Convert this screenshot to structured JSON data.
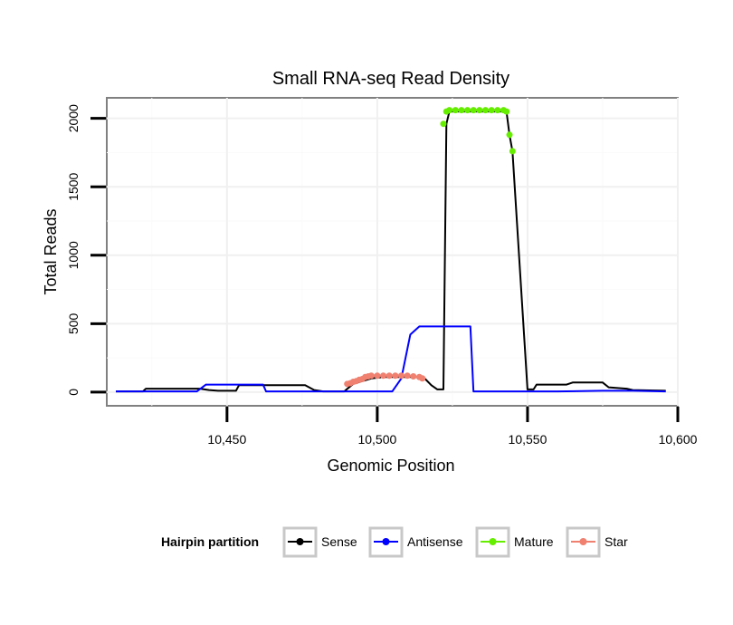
{
  "chart_data": {
    "type": "line",
    "title": "Small RNA-seq Read Density",
    "xlabel": "Genomic Position",
    "ylabel": "Total Reads",
    "xlim": [
      10410,
      10600
    ],
    "ylim": [
      -100,
      2150
    ],
    "x_ticks": [
      10450,
      10500,
      10550,
      10600
    ],
    "x_tick_labels": [
      "10,450",
      "10,500",
      "10,550",
      "10,600"
    ],
    "y_ticks": [
      0,
      500,
      1000,
      1500,
      2000
    ],
    "y_tick_labels": [
      "0",
      "500",
      "1000",
      "1500",
      "2000"
    ],
    "grid": true,
    "legend": {
      "title": "Hairpin partition",
      "position": "bottom",
      "entries": [
        "Sense",
        "Antisense",
        "Mature",
        "Star"
      ]
    },
    "colors": {
      "Sense": "#000000",
      "Antisense": "#0000ff",
      "Mature": "#66ee00",
      "Star": "#f08070"
    },
    "series": [
      {
        "name": "Sense",
        "style": "line",
        "points": [
          [
            10413,
            5
          ],
          [
            10422,
            5
          ],
          [
            10423,
            25
          ],
          [
            10436,
            25
          ],
          [
            10441,
            25
          ],
          [
            10444,
            15
          ],
          [
            10447,
            10
          ],
          [
            10453,
            10
          ],
          [
            10454,
            50
          ],
          [
            10476,
            50
          ],
          [
            10479,
            15
          ],
          [
            10482,
            5
          ],
          [
            10489,
            5
          ],
          [
            10492,
            60
          ],
          [
            10495,
            80
          ],
          [
            10498,
            100
          ],
          [
            10502,
            110
          ],
          [
            10514,
            110
          ],
          [
            10516,
            95
          ],
          [
            10518,
            50
          ],
          [
            10520,
            20
          ],
          [
            10522,
            20
          ],
          [
            10523,
            1960
          ],
          [
            10524,
            2050
          ],
          [
            10543,
            2050
          ],
          [
            10544,
            1880
          ],
          [
            10545,
            1760
          ],
          [
            10550,
            20
          ],
          [
            10552,
            20
          ],
          [
            10553,
            55
          ],
          [
            10563,
            55
          ],
          [
            10565,
            70
          ],
          [
            10575,
            70
          ],
          [
            10577,
            35
          ],
          [
            10583,
            25
          ],
          [
            10585,
            15
          ],
          [
            10596,
            10
          ]
        ]
      },
      {
        "name": "Antisense",
        "style": "line",
        "points": [
          [
            10413,
            5
          ],
          [
            10440,
            5
          ],
          [
            10443,
            55
          ],
          [
            10462,
            55
          ],
          [
            10463,
            5
          ],
          [
            10505,
            5
          ],
          [
            10508,
            100
          ],
          [
            10511,
            420
          ],
          [
            10514,
            480
          ],
          [
            10531,
            480
          ],
          [
            10532,
            5
          ],
          [
            10560,
            5
          ],
          [
            10575,
            10
          ],
          [
            10585,
            10
          ],
          [
            10596,
            5
          ]
        ]
      },
      {
        "name": "Mature",
        "style": "points",
        "points": [
          [
            10522,
            1960
          ],
          [
            10523,
            2050
          ],
          [
            10524,
            2060
          ],
          [
            10526,
            2060
          ],
          [
            10528,
            2060
          ],
          [
            10530,
            2060
          ],
          [
            10532,
            2060
          ],
          [
            10534,
            2060
          ],
          [
            10536,
            2060
          ],
          [
            10538,
            2060
          ],
          [
            10540,
            2060
          ],
          [
            10542,
            2060
          ],
          [
            10543,
            2050
          ],
          [
            10544,
            1880
          ],
          [
            10545,
            1760
          ]
        ]
      },
      {
        "name": "Star",
        "style": "points",
        "points": [
          [
            10490,
            60
          ],
          [
            10491,
            65
          ],
          [
            10492,
            75
          ],
          [
            10493,
            80
          ],
          [
            10494,
            90
          ],
          [
            10495,
            95
          ],
          [
            10496,
            110
          ],
          [
            10497,
            115
          ],
          [
            10498,
            120
          ],
          [
            10500,
            120
          ],
          [
            10502,
            120
          ],
          [
            10504,
            120
          ],
          [
            10506,
            120
          ],
          [
            10508,
            120
          ],
          [
            10510,
            120
          ],
          [
            10512,
            115
          ],
          [
            10514,
            110
          ],
          [
            10515,
            100
          ]
        ]
      }
    ]
  }
}
